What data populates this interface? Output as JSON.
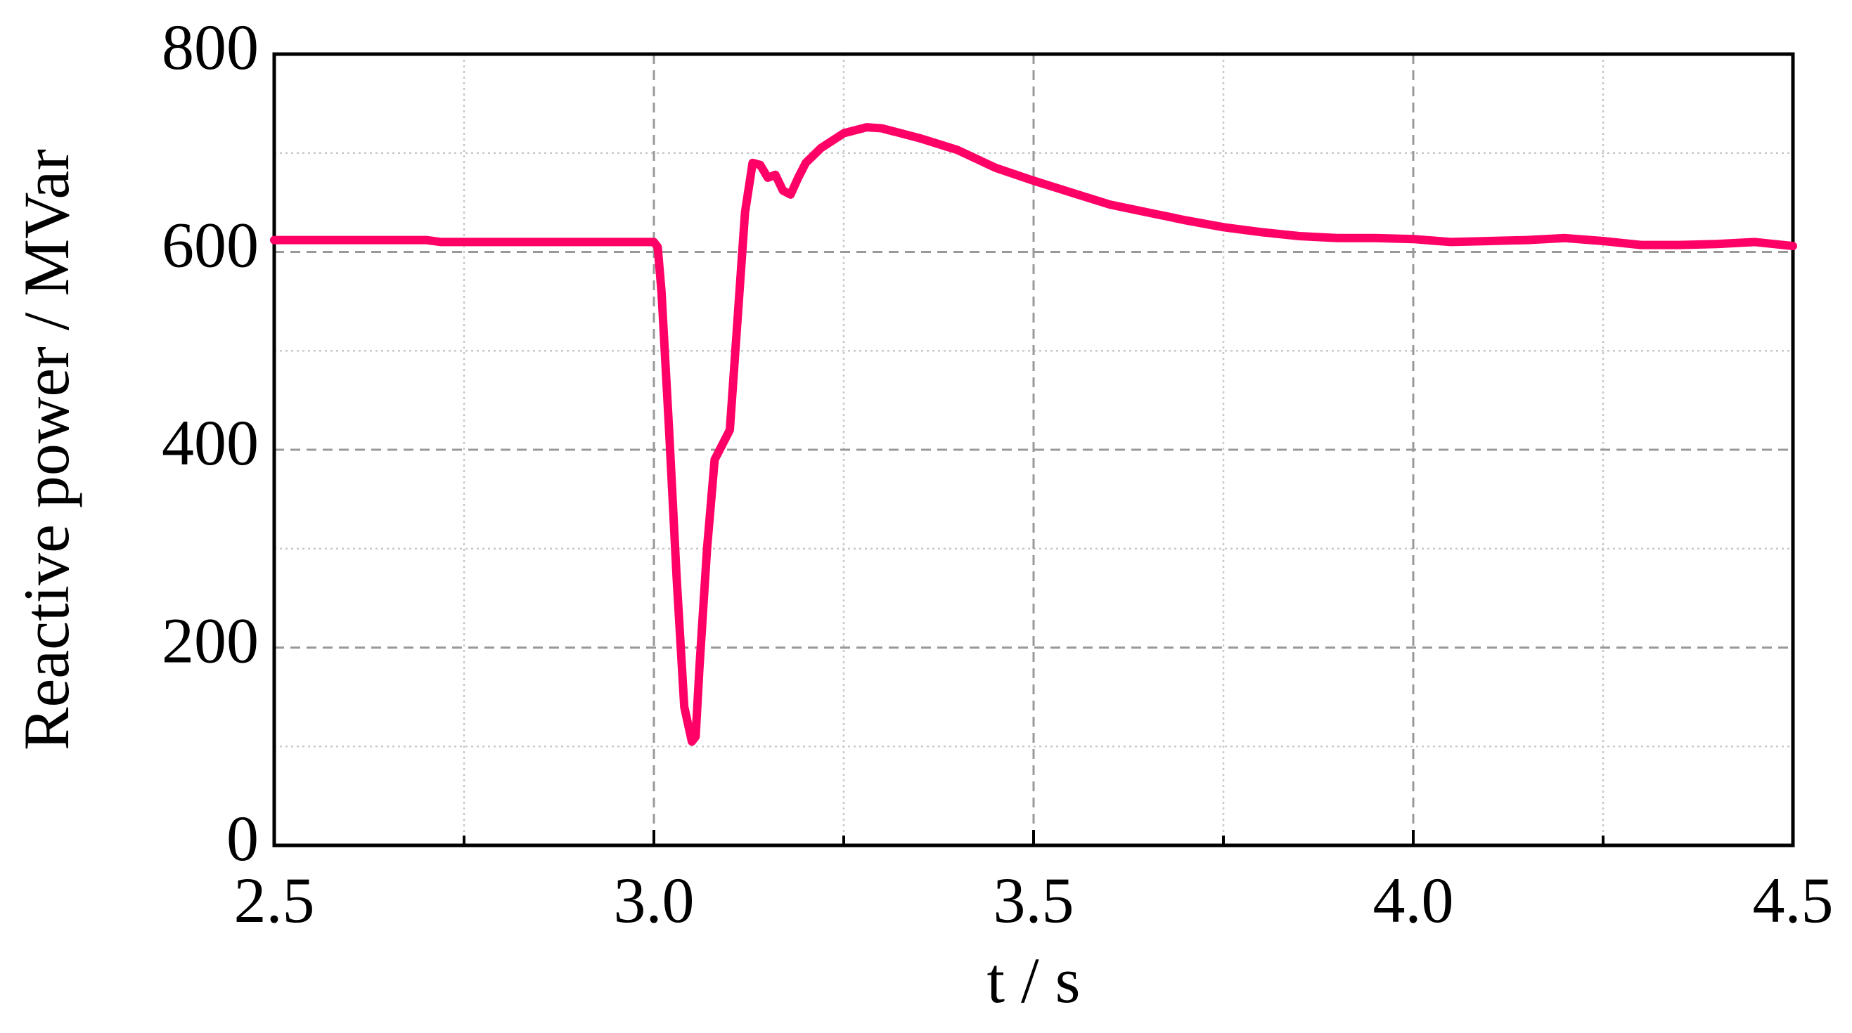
{
  "chart_data": {
    "type": "line",
    "ylabel": "Reactive power / MVar",
    "xlabel": "t / s",
    "xlim": [
      2.5,
      4.5
    ],
    "ylim": [
      0,
      800
    ],
    "xticks": [
      2.5,
      {
        "value": 3,
        "label": "3.0"
      },
      3.5,
      {
        "value": 4,
        "label": "4.0"
      },
      4.5
    ],
    "yticks": [
      0,
      200,
      400,
      600,
      800
    ],
    "xminorticks": [
      2.75,
      3.25,
      3.75,
      4.25
    ],
    "yminorticks": [
      100,
      300,
      500,
      700
    ],
    "grid": true,
    "x": [
      2.5,
      2.7,
      2.72,
      3.0,
      3.005,
      3.01,
      3.02,
      3.03,
      3.04,
      3.05,
      3.055,
      3.06,
      3.07,
      3.08,
      3.09,
      3.1,
      3.11,
      3.12,
      3.13,
      3.14,
      3.15,
      3.16,
      3.17,
      3.18,
      3.19,
      3.2,
      3.22,
      3.25,
      3.28,
      3.3,
      3.35,
      3.4,
      3.45,
      3.5,
      3.55,
      3.6,
      3.65,
      3.7,
      3.75,
      3.8,
      3.85,
      3.9,
      3.95,
      4.0,
      4.05,
      4.1,
      4.15,
      4.2,
      4.25,
      4.3,
      4.35,
      4.4,
      4.45,
      4.5
    ],
    "series": [
      {
        "color": "#ff0066",
        "values": [
          612,
          612,
          610,
          610,
          605,
          560,
          420,
          270,
          140,
          105,
          110,
          180,
          300,
          390,
          405,
          420,
          530,
          640,
          690,
          688,
          675,
          678,
          662,
          658,
          675,
          690,
          705,
          720,
          726,
          725,
          715,
          703,
          685,
          672,
          660,
          648,
          640,
          632,
          625,
          620,
          616,
          614,
          614,
          613,
          610,
          611,
          612,
          614,
          611,
          607,
          607,
          608,
          610,
          606
        ]
      }
    ]
  }
}
